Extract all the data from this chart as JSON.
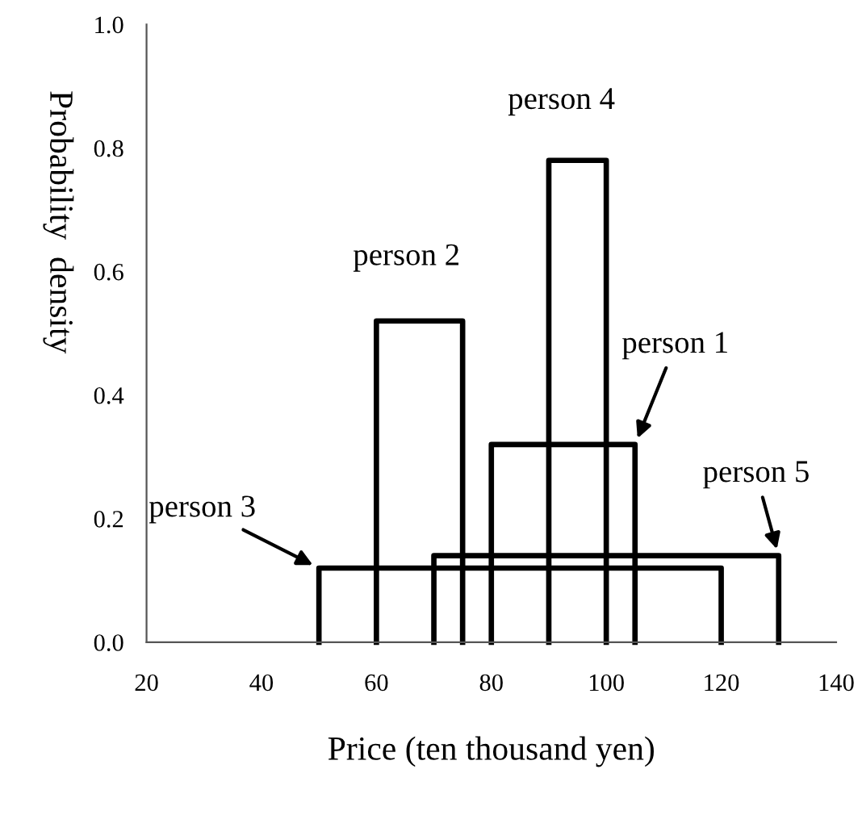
{
  "chart_data": {
    "type": "line",
    "xlabel": "Price (ten thousand yen)",
    "ylabel": "Probability  density",
    "xlim": [
      20,
      140
    ],
    "xticks": [
      20,
      40,
      60,
      80,
      100,
      120,
      140
    ],
    "ylim": [
      0,
      1.0
    ],
    "yticks": [
      {
        "value": 0,
        "label": "0.0"
      },
      0.2,
      0.4,
      0.6,
      0.8,
      {
        "value": 1,
        "label": "1.0"
      }
    ],
    "grid": false,
    "legend": false,
    "marker": "none",
    "series": [
      {
        "color": "#000000",
        "x": [
          80,
          80,
          105,
          105
        ],
        "values": [
          0,
          0.32,
          0.32,
          0
        ]
      },
      {
        "color": "#000000",
        "x": [
          60,
          60,
          75,
          75
        ],
        "values": [
          0,
          0.52,
          0.52,
          0
        ]
      },
      {
        "color": "#000000",
        "x": [
          50,
          50,
          120,
          120
        ],
        "values": [
          0,
          0.12,
          0.12,
          0
        ]
      },
      {
        "color": "#000000",
        "x": [
          90,
          90,
          100,
          100
        ],
        "values": [
          0,
          0.78,
          0.78,
          0
        ]
      },
      {
        "color": "#000000",
        "x": [
          70,
          70,
          130,
          130
        ],
        "values": [
          0,
          0.14,
          0.14,
          0
        ]
      }
    ],
    "annotations": [
      {
        "text": "person 1",
        "x": 105,
        "y": 0.32
      },
      {
        "text": "person 2",
        "x": 75,
        "y": 0.52
      },
      {
        "text": "person 3",
        "x": 50,
        "y": 0.12
      },
      {
        "text": "person 4",
        "x": 100,
        "y": 0.78
      },
      {
        "text": "person 5",
        "x": 130,
        "y": 0.14
      }
    ]
  }
}
